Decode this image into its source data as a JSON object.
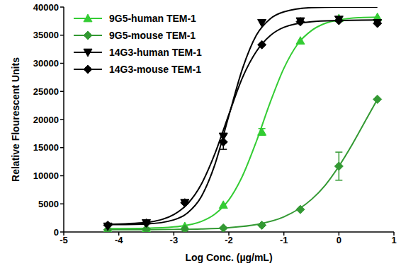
{
  "chart_data": {
    "type": "scatter",
    "x_label": "Log Conc. (µg/mL)",
    "y_label": "Relative Flourescent Units",
    "xlim": [
      -5,
      1
    ],
    "xticks": [
      -5,
      -4,
      -3,
      -2,
      -1,
      0,
      1
    ],
    "ylim": [
      0,
      40000
    ],
    "yticks": [
      0,
      5000,
      10000,
      15000,
      20000,
      25000,
      30000,
      35000,
      40000
    ],
    "grid": false,
    "legend": "upper left",
    "x": [
      -4.2,
      -3.5,
      -2.8,
      -2.1,
      -1.4,
      -0.7,
      0,
      0.7
    ],
    "series": [
      {
        "name": "9G5-human TEM-1",
        "color": "#33cc33",
        "marker": "triangle",
        "values": [
          500,
          600,
          1000,
          4800,
          17800,
          34000,
          38000,
          38200
        ],
        "errors": [
          null,
          null,
          null,
          null,
          600,
          null,
          null,
          null
        ],
        "fit": {
          "x": [
            -4.2,
            -3.5,
            -3,
            -2.5,
            -2.25,
            -2,
            -1.75,
            -1.5,
            -1.25,
            -1,
            -0.75,
            -0.5,
            -0.25,
            0,
            0.35,
            0.7
          ],
          "values": [
            600,
            665,
            900,
            1870,
            3200,
            5700,
            10000,
            16100,
            23000,
            29100,
            33400,
            35800,
            37100,
            37700,
            38100,
            38200
          ]
        }
      },
      {
        "name": "9G5-mouse TEM-1",
        "color": "#339933",
        "marker": "diamond",
        "values": [
          400,
          500,
          500,
          700,
          1200,
          4000,
          11700,
          23600
        ],
        "errors": [
          null,
          null,
          null,
          null,
          null,
          null,
          2500,
          null
        ],
        "fit": {
          "x": [
            -4.2,
            -3.5,
            -3,
            -2.5,
            -2,
            -1.5,
            -1,
            -0.5,
            -0.25,
            0,
            0.25,
            0.5,
            0.7
          ],
          "values": [
            406,
            422,
            456,
            540,
            770,
            1320,
            2680,
            5770,
            8300,
            11700,
            15700,
            20100,
            23600
          ]
        }
      },
      {
        "name": "14G3-human TEM-1",
        "color": "#000000",
        "marker": "triangle_down",
        "values": [
          1000,
          1600,
          5200,
          17000,
          37200,
          37500,
          37800,
          37200
        ],
        "errors": [
          null,
          null,
          null,
          null,
          null,
          null,
          null,
          null
        ],
        "fit": {
          "x": [
            -4.2,
            -3.5,
            -3,
            -2.75,
            -2.5,
            -2.25,
            -2,
            -1.75,
            -1.5,
            -1.25,
            -1,
            -0.5,
            0,
            0.7
          ],
          "values": [
            1310,
            1430,
            2150,
            3400,
            6300,
            12100,
            20650,
            29100,
            35000,
            37900,
            39150,
            39900,
            40000,
            40000
          ]
        }
      },
      {
        "name": "14G3-mouse TEM-1",
        "color": "#000000",
        "marker": "diamond",
        "values": [
          1200,
          1600,
          5200,
          16000,
          33300,
          37400,
          37600,
          37100
        ],
        "errors": [
          null,
          null,
          null,
          1300,
          null,
          null,
          null,
          null
        ],
        "fit": {
          "x": [
            -4.2,
            -3.5,
            -3,
            -2.75,
            -2.5,
            -2.25,
            -2,
            -1.75,
            -1.5,
            -1.25,
            -1,
            -0.5,
            0,
            0.7
          ],
          "values": [
            1350,
            1700,
            3100,
            5000,
            8500,
            14000,
            20900,
            27500,
            32100,
            34900,
            36400,
            37400,
            37600,
            37700
          ]
        }
      }
    ]
  }
}
